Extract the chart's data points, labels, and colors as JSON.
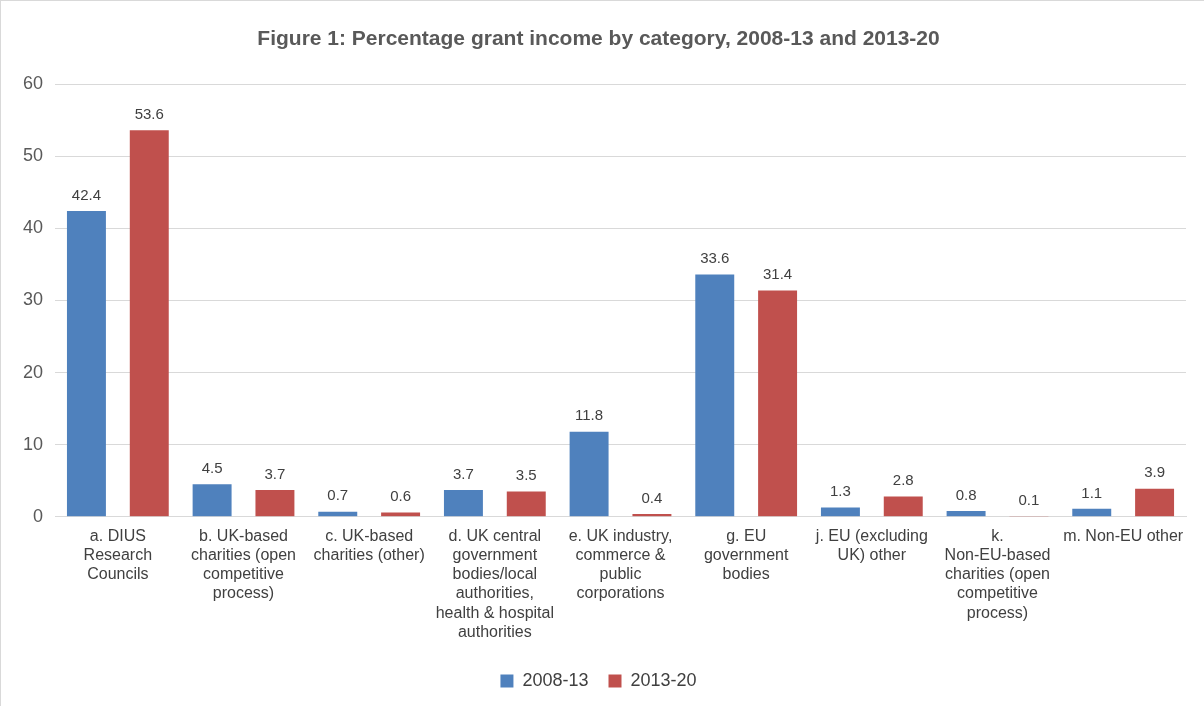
{
  "chart_data": {
    "type": "bar",
    "title": "Figure 1: Percentage grant income by category, 2008-13 and 2013-20",
    "categories": [
      "a. DIUS Research Councils",
      "b. UK-based charities (open competitive process)",
      "c. UK-based charities (other)",
      "d. UK central government bodies/local authorities, health & hospital authorities",
      "e. UK industry, commerce & public corporations",
      "g. EU government bodies",
      "j. EU (excluding UK) other",
      "k. Non-EU-based charities (open competitive process)",
      "m. Non-EU other"
    ],
    "series": [
      {
        "name": "2008-13",
        "color": "#4f81bd",
        "values": [
          42.4,
          4.5,
          0.7,
          3.7,
          11.8,
          33.6,
          1.3,
          0.8,
          1.1
        ]
      },
      {
        "name": "2013-20",
        "color": "#c0504d",
        "values": [
          53.6,
          3.7,
          0.6,
          3.5,
          0.4,
          31.4,
          2.8,
          0.1,
          3.9
        ]
      }
    ],
    "ylim": [
      0,
      60
    ],
    "yticks": [
      0,
      10,
      20,
      30,
      40,
      50,
      60
    ],
    "grid": "y",
    "legend": "bottom",
    "data_labels": true
  }
}
